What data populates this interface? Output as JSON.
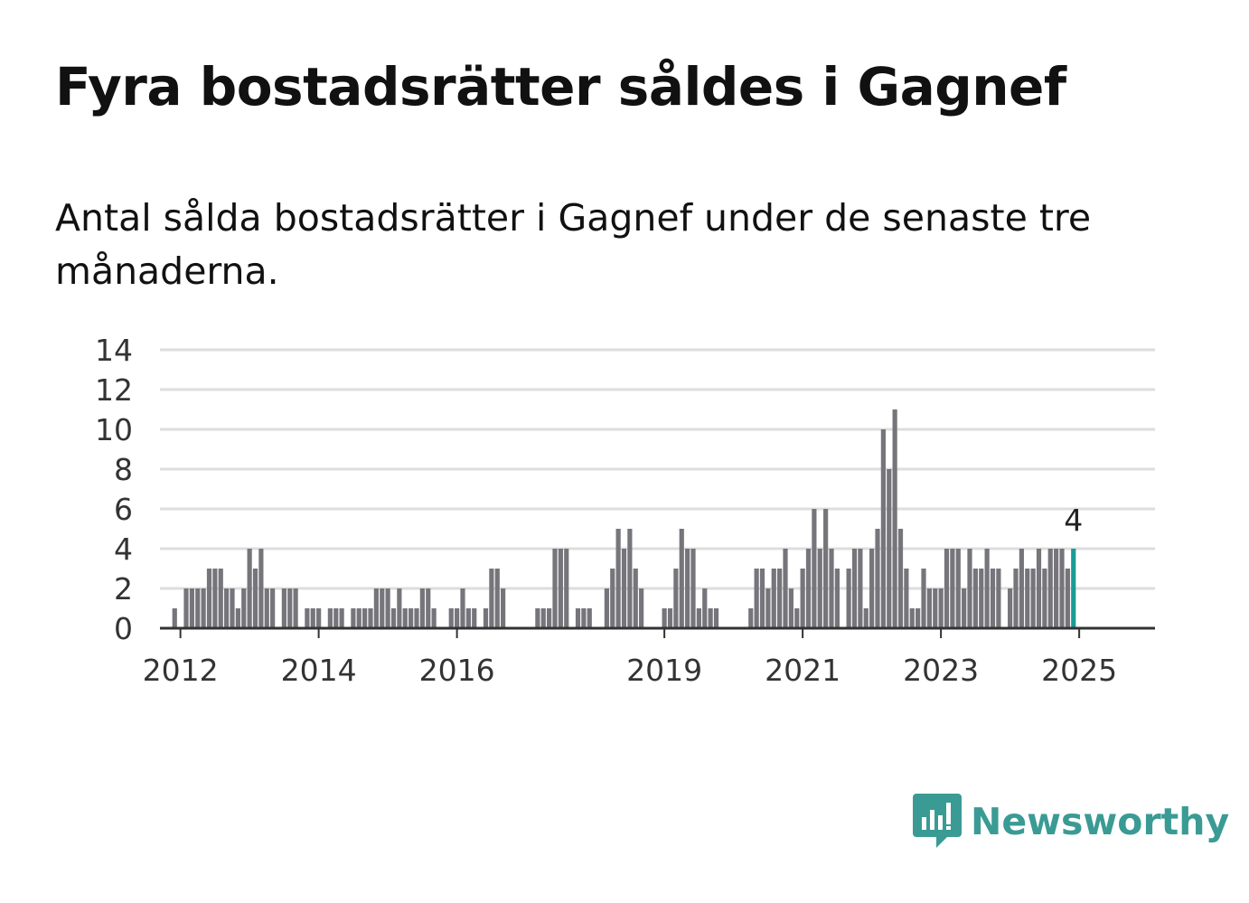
{
  "header": {
    "title": "Fyra bostadsrätter såldes i Gagnef",
    "subtitle": "Antal sålda bostadsrätter i Gagnef under de senaste tre månaderna."
  },
  "brand": {
    "name": "Newsworthy",
    "color": "#3a9b94",
    "icon": "bar-chart-speech-bubble-icon"
  },
  "colors": {
    "bar": "#76757b",
    "highlight": "#1a9c96",
    "grid": "#dddddd",
    "axis": "#333333"
  },
  "chart_data": {
    "type": "bar",
    "xlabel": "",
    "ylabel": "",
    "ylim": [
      0,
      14
    ],
    "yticks": [
      0,
      2,
      4,
      6,
      8,
      10,
      12,
      14
    ],
    "xticks": [
      "2012",
      "2014",
      "2016",
      "2019",
      "2021",
      "2023",
      "2025"
    ],
    "start_label": "2011-10",
    "frequency": "monthly",
    "grid": true,
    "highlight": {
      "label": "2025-01",
      "value": 4,
      "value_label": "4"
    },
    "values": [
      0,
      0,
      1,
      0,
      2,
      2,
      2,
      2,
      3,
      3,
      3,
      2,
      2,
      1,
      2,
      4,
      3,
      4,
      2,
      2,
      0,
      2,
      2,
      2,
      0,
      1,
      1,
      1,
      0,
      1,
      1,
      1,
      0,
      1,
      1,
      1,
      1,
      2,
      2,
      2,
      1,
      2,
      1,
      1,
      1,
      2,
      2,
      1,
      0,
      0,
      1,
      1,
      2,
      1,
      1,
      0,
      1,
      3,
      3,
      2,
      0,
      0,
      0,
      0,
      0,
      1,
      1,
      1,
      4,
      4,
      4,
      0,
      1,
      1,
      1,
      0,
      0,
      2,
      3,
      5,
      4,
      5,
      3,
      2,
      0,
      0,
      0,
      1,
      1,
      3,
      5,
      4,
      4,
      1,
      2,
      1,
      1,
      0,
      0,
      0,
      0,
      0,
      1,
      3,
      3,
      2,
      3,
      3,
      4,
      2,
      1,
      3,
      4,
      6,
      4,
      6,
      4,
      3,
      0,
      3,
      4,
      4,
      1,
      4,
      5,
      10,
      8,
      11,
      5,
      3,
      1,
      1,
      3,
      2,
      2,
      2,
      4,
      4,
      4,
      2,
      4,
      3,
      3,
      4,
      3,
      3,
      0,
      2,
      3,
      4,
      3,
      3,
      4,
      3,
      4,
      4,
      4,
      3,
      4
    ]
  }
}
